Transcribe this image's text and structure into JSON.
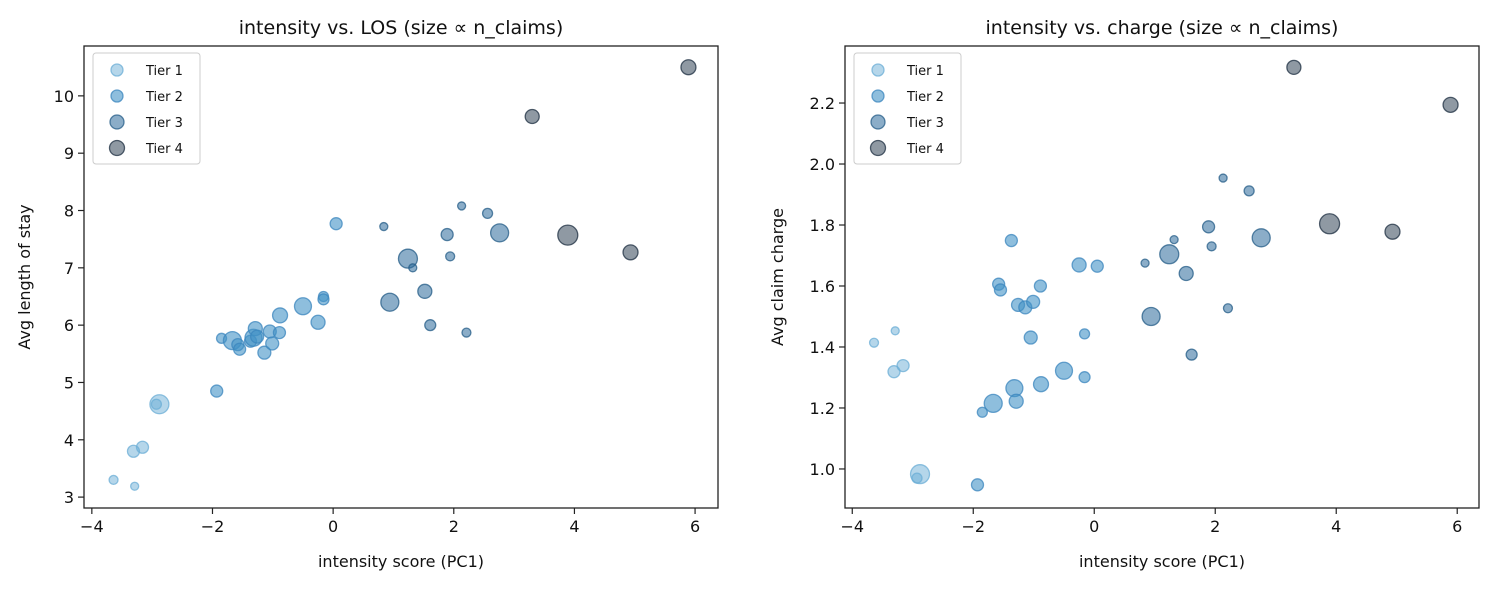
{
  "chart_data": [
    {
      "type": "scatter",
      "title": "intensity vs. LOS (size ∝ n_claims)",
      "xlabel": "intensity score (PC1)",
      "ylabel": "Avg length of stay",
      "xlim": [
        -4.13,
        6.38
      ],
      "ylim": [
        2.81,
        10.87
      ],
      "xticks": [
        "−4",
        "−2",
        "0",
        "2",
        "4",
        "6"
      ],
      "xtick_values": [
        -4,
        -2,
        0,
        2,
        4,
        6
      ],
      "yticks": [
        "3",
        "4",
        "5",
        "6",
        "7",
        "8",
        "9",
        "10"
      ],
      "ytick_values": [
        3,
        4,
        5,
        6,
        7,
        8,
        9,
        10
      ],
      "y_field": "los",
      "grid": false,
      "legend": "top-left"
    },
    {
      "type": "scatter",
      "title": "intensity vs. charge (size ∝ n_claims)",
      "xlabel": "intensity score (PC1)",
      "ylabel": "Avg claim charge",
      "xlim": [
        -4.12,
        6.36
      ],
      "ylim": [
        0.872,
        2.387
      ],
      "xticks": [
        "−4",
        "−2",
        "0",
        "2",
        "4",
        "6"
      ],
      "xtick_values": [
        -4,
        -2,
        0,
        2,
        4,
        6
      ],
      "yticks": [
        "1.0",
        "1.2",
        "1.4",
        "1.6",
        "1.8",
        "2.0",
        "2.2"
      ],
      "ytick_values": [
        1.0,
        1.2,
        1.4,
        1.6,
        1.8,
        2.0,
        2.2
      ],
      "y_field": "charge",
      "grid": false,
      "legend": "top-left"
    }
  ],
  "legend": [
    "Tier 1",
    "Tier 2",
    "Tier 3",
    "Tier 4"
  ],
  "tier_colors": {
    "fill": [
      "#6baed6",
      "#4292c6",
      "#2b6a9a",
      "#1f3447"
    ],
    "edge": [
      "#6baed6",
      "#3b85bd",
      "#245c87",
      "#1c2e40"
    ]
  },
  "points": [
    {
      "x": -3.64,
      "los": 3.3,
      "charge": 1.414,
      "tier": 1,
      "n_claims_rel": 20
    },
    {
      "x": -3.29,
      "los": 3.19,
      "charge": 1.453,
      "tier": 1,
      "n_claims_rel": 16
    },
    {
      "x": -3.31,
      "los": 3.8,
      "charge": 1.319,
      "tier": 1,
      "n_claims_rel": 36
    },
    {
      "x": -3.16,
      "los": 3.87,
      "charge": 1.339,
      "tier": 1,
      "n_claims_rel": 36
    },
    {
      "x": -2.88,
      "los": 4.62,
      "charge": 0.983,
      "tier": 1,
      "n_claims_rel": 90
    },
    {
      "x": -2.93,
      "los": 4.62,
      "charge": 0.97,
      "tier": 1,
      "n_claims_rel": 25
    },
    {
      "x": -1.93,
      "los": 4.85,
      "charge": 0.948,
      "tier": 2,
      "n_claims_rel": 36
    },
    {
      "x": -1.85,
      "los": 5.77,
      "charge": 1.186,
      "tier": 2,
      "n_claims_rel": 25
    },
    {
      "x": -1.67,
      "los": 5.73,
      "charge": 1.215,
      "tier": 2,
      "n_claims_rel": 81
    },
    {
      "x": -1.58,
      "los": 5.66,
      "charge": 1.606,
      "tier": 2,
      "n_claims_rel": 36
    },
    {
      "x": -1.55,
      "los": 5.58,
      "charge": 1.587,
      "tier": 2,
      "n_claims_rel": 36
    },
    {
      "x": -1.37,
      "los": 5.72,
      "charge": 1.749,
      "tier": 2,
      "n_claims_rel": 36
    },
    {
      "x": -1.32,
      "los": 5.78,
      "charge": 1.265,
      "tier": 2,
      "n_claims_rel": 72
    },
    {
      "x": -1.29,
      "los": 5.94,
      "charge": 1.222,
      "tier": 2,
      "n_claims_rel": 49
    },
    {
      "x": -1.26,
      "los": 5.8,
      "charge": 1.538,
      "tier": 2,
      "n_claims_rel": 42
    },
    {
      "x": -1.14,
      "los": 5.52,
      "charge": 1.53,
      "tier": 2,
      "n_claims_rel": 42
    },
    {
      "x": -1.05,
      "los": 5.89,
      "charge": 1.431,
      "tier": 2,
      "n_claims_rel": 42
    },
    {
      "x": -1.01,
      "los": 5.68,
      "charge": 1.548,
      "tier": 2,
      "n_claims_rel": 42
    },
    {
      "x": -0.89,
      "los": 5.87,
      "charge": 1.6,
      "tier": 2,
      "n_claims_rel": 36
    },
    {
      "x": -0.88,
      "los": 6.17,
      "charge": 1.278,
      "tier": 2,
      "n_claims_rel": 56
    },
    {
      "x": -0.5,
      "los": 6.33,
      "charge": 1.322,
      "tier": 2,
      "n_claims_rel": 72
    },
    {
      "x": -0.25,
      "los": 6.05,
      "charge": 1.669,
      "tier": 2,
      "n_claims_rel": 49
    },
    {
      "x": -0.16,
      "los": 6.5,
      "charge": 1.443,
      "tier": 2,
      "n_claims_rel": 25
    },
    {
      "x": -0.16,
      "los": 6.45,
      "charge": 1.301,
      "tier": 2,
      "n_claims_rel": 30
    },
    {
      "x": 0.05,
      "los": 7.77,
      "charge": 1.665,
      "tier": 2,
      "n_claims_rel": 36
    },
    {
      "x": 0.84,
      "los": 7.72,
      "charge": 1.675,
      "tier": 3,
      "n_claims_rel": 16
    },
    {
      "x": 0.94,
      "los": 6.4,
      "charge": 1.5,
      "tier": 3,
      "n_claims_rel": 81
    },
    {
      "x": 1.24,
      "los": 7.16,
      "charge": 1.704,
      "tier": 3,
      "n_claims_rel": 90
    },
    {
      "x": 1.32,
      "los": 7.0,
      "charge": 1.752,
      "tier": 3,
      "n_claims_rel": 16
    },
    {
      "x": 1.52,
      "los": 6.59,
      "charge": 1.641,
      "tier": 3,
      "n_claims_rel": 49
    },
    {
      "x": 1.61,
      "los": 6.0,
      "charge": 1.375,
      "tier": 3,
      "n_claims_rel": 30
    },
    {
      "x": 1.89,
      "los": 7.58,
      "charge": 1.794,
      "tier": 3,
      "n_claims_rel": 36
    },
    {
      "x": 1.94,
      "los": 7.2,
      "charge": 1.73,
      "tier": 3,
      "n_claims_rel": 20
    },
    {
      "x": 2.13,
      "los": 8.08,
      "charge": 1.954,
      "tier": 3,
      "n_claims_rel": 16
    },
    {
      "x": 2.21,
      "los": 5.87,
      "charge": 1.527,
      "tier": 3,
      "n_claims_rel": 20
    },
    {
      "x": 2.56,
      "los": 7.95,
      "charge": 1.912,
      "tier": 3,
      "n_claims_rel": 25
    },
    {
      "x": 2.76,
      "los": 7.61,
      "charge": 1.758,
      "tier": 3,
      "n_claims_rel": 81
    },
    {
      "x": 3.3,
      "los": 9.64,
      "charge": 2.317,
      "tier": 4,
      "n_claims_rel": 49
    },
    {
      "x": 3.89,
      "los": 7.57,
      "charge": 1.804,
      "tier": 4,
      "n_claims_rel": 100
    },
    {
      "x": 4.93,
      "los": 7.27,
      "charge": 1.778,
      "tier": 4,
      "n_claims_rel": 56
    },
    {
      "x": 5.89,
      "los": 10.5,
      "charge": 2.194,
      "tier": 4,
      "n_claims_rel": 56
    }
  ]
}
